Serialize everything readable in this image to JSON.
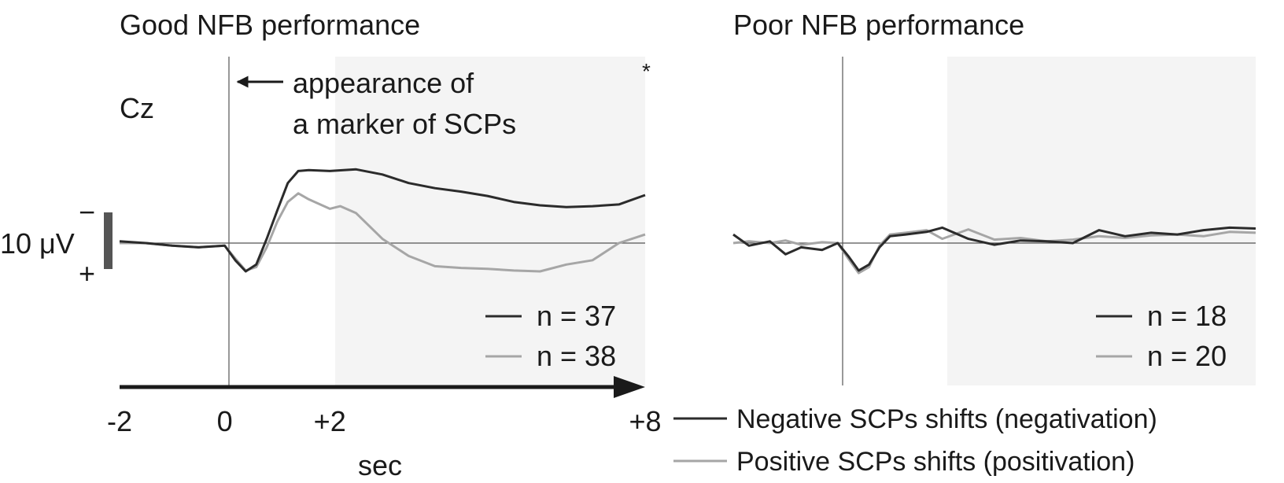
{
  "chart_data": [
    {
      "type": "line",
      "title": "Good NFB performance",
      "electrode_label": "Cz",
      "annotation": [
        "appearance of",
        "a marker of SCPs"
      ],
      "significance_mark": "*",
      "scale_bar": {
        "label": "10 μV",
        "minus": "−",
        "plus": "+"
      },
      "xlabel": "sec",
      "xlim": [
        -2,
        8
      ],
      "x_ticks": [
        -2,
        0,
        2,
        8
      ],
      "x_tick_labels": [
        "-2",
        "0",
        "+2",
        "+8"
      ],
      "shaded_interval": [
        2,
        8
      ],
      "y_axis_inverted": true,
      "y_unit": "μV",
      "grid": false,
      "legend_position": "bottom-right",
      "legend": [
        "n = 37",
        "n = 38"
      ],
      "series": [
        {
          "color": "#2b2b2b",
          "x": [
            -2,
            -1.5,
            -1,
            -0.5,
            0,
            0.2,
            0.4,
            0.6,
            0.8,
            1,
            1.2,
            1.4,
            1.6,
            2,
            2.5,
            3,
            3.5,
            4,
            4.5,
            5,
            5.5,
            6,
            6.5,
            7,
            7.5,
            8
          ],
          "y": [
            0.2,
            0.0,
            -0.3,
            -0.5,
            -0.3,
            -2.0,
            -3.3,
            -2.5,
            0.5,
            3.8,
            7.0,
            8.4,
            8.5,
            8.4,
            8.6,
            8.0,
            7.0,
            6.4,
            6.0,
            5.5,
            4.8,
            4.4,
            4.2,
            4.3,
            4.5,
            5.6
          ]
        },
        {
          "color": "#a6a6a6",
          "x": [
            -2,
            -1.5,
            -1,
            -0.5,
            0,
            0.2,
            0.4,
            0.6,
            0.8,
            1,
            1.2,
            1.4,
            1.6,
            2,
            2.2,
            2.5,
            3,
            3.5,
            4,
            4.5,
            5,
            5.5,
            6,
            6.5,
            7,
            7.5,
            8
          ],
          "y": [
            0.0,
            0.0,
            -0.3,
            -0.5,
            -0.3,
            -1.8,
            -3.2,
            -2.8,
            -0.5,
            2.5,
            4.8,
            5.8,
            5.1,
            4.0,
            4.3,
            3.5,
            0.5,
            -1.5,
            -2.7,
            -2.9,
            -3.0,
            -3.2,
            -3.3,
            -2.5,
            -2.0,
            0.0,
            1.0
          ]
        }
      ]
    },
    {
      "type": "line",
      "title": "Poor NFB performance",
      "xlim": [
        -2,
        8
      ],
      "shaded_interval": [
        2,
        8
      ],
      "y_axis_inverted": true,
      "grid": false,
      "legend_position": "bottom-right",
      "legend": [
        "n = 18",
        "n = 20"
      ],
      "series": [
        {
          "color": "#2b2b2b",
          "x": [
            -2,
            -1.7,
            -1.3,
            -1,
            -0.7,
            -0.3,
            0,
            0.2,
            0.4,
            0.6,
            0.8,
            1,
            1.3,
            1.7,
            2,
            2.5,
            3,
            3.5,
            4,
            4.5,
            5,
            5.5,
            6,
            6.5,
            7,
            7.5,
            8
          ],
          "y": [
            1.0,
            -0.3,
            0.2,
            -1.3,
            -0.5,
            -0.8,
            0.0,
            -1.5,
            -3.2,
            -2.5,
            -0.5,
            0.8,
            1.0,
            1.3,
            1.8,
            0.5,
            -0.2,
            0.3,
            0.2,
            0.0,
            1.5,
            0.8,
            1.2,
            1.0,
            1.5,
            1.8,
            1.7
          ]
        },
        {
          "color": "#a6a6a6",
          "x": [
            -2,
            -1.7,
            -1.3,
            -1,
            -0.7,
            -0.3,
            0,
            0.2,
            0.4,
            0.6,
            0.8,
            1,
            1.3,
            1.7,
            2,
            2.5,
            3,
            3.5,
            4,
            4.5,
            5,
            5.5,
            6,
            6.5,
            7,
            7.5,
            8
          ],
          "y": [
            0.0,
            0.2,
            0.0,
            0.3,
            -0.2,
            0.1,
            0.0,
            -1.8,
            -3.5,
            -2.8,
            -0.3,
            1.0,
            1.2,
            1.5,
            0.5,
            1.6,
            0.4,
            0.6,
            0.2,
            0.4,
            0.8,
            0.6,
            0.9,
            1.0,
            0.8,
            1.3,
            1.2
          ]
        }
      ]
    }
  ],
  "bottom_legend": [
    {
      "label": "Negative SCPs shifts (negativation)",
      "color": "#2b2b2b"
    },
    {
      "label": "Positive SCPs shifts (positivation)",
      "color": "#a6a6a6"
    }
  ]
}
